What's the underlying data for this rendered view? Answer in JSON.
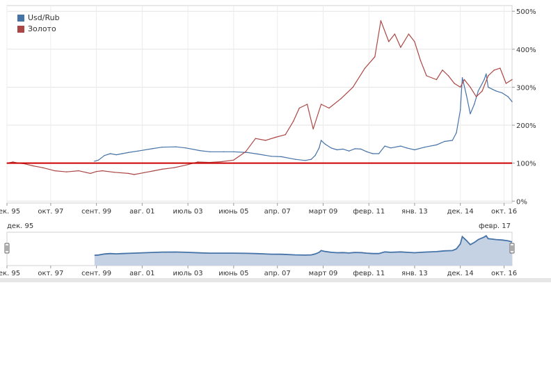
{
  "chart_data": [
    {
      "type": "line",
      "legend": [
        {
          "name": "Usd/Rub",
          "color": "#4572A7"
        },
        {
          "name": "Золото",
          "color": "#AA4643"
        }
      ],
      "legend_placement": "top-left",
      "grid": true,
      "y_axis": {
        "position": "right",
        "ylim": [
          -5,
          515
        ],
        "ticks": [
          0,
          100,
          200,
          300,
          400,
          500
        ],
        "tick_labels": [
          "0%",
          "100%",
          "200%",
          "300%",
          "400%",
          "500%"
        ]
      },
      "xlim": [
        "1995-12",
        "2017-02"
      ],
      "x_tick_labels": [
        {
          "date": "1995-12",
          "label": "дек. 95"
        },
        {
          "date": "1997-10",
          "label": "окт. 97"
        },
        {
          "date": "1999-09",
          "label": "сент. 99"
        },
        {
          "date": "2001-08",
          "label": "авг. 01"
        },
        {
          "date": "2003-07",
          "label": "июль 03"
        },
        {
          "date": "2005-06",
          "label": "июнь 05"
        },
        {
          "date": "2007-04",
          "label": "апр. 07"
        },
        {
          "date": "2009-03",
          "label": "март 09"
        },
        {
          "date": "2011-02",
          "label": "февр. 11"
        },
        {
          "date": "2013-01",
          "label": "янв. 13"
        },
        {
          "date": "2014-12",
          "label": "дек. 14"
        },
        {
          "date": "2016-10",
          "label": "окт. 16"
        }
      ],
      "reference_line": {
        "value": 100,
        "color": "#CC0000"
      },
      "series": [
        {
          "name": "Usd/Rub",
          "color": "#4572A7",
          "points": [
            [
              "1999-08",
              105
            ],
            [
              "1999-10",
              108
            ],
            [
              "2000-01",
              120
            ],
            [
              "2000-04",
              125
            ],
            [
              "2000-07",
              122
            ],
            [
              "2000-10",
              125
            ],
            [
              "2001-01",
              128
            ],
            [
              "2001-06",
              132
            ],
            [
              "2002-01",
              138
            ],
            [
              "2002-06",
              142
            ],
            [
              "2003-01",
              143
            ],
            [
              "2003-06",
              140
            ],
            [
              "2004-01",
              133
            ],
            [
              "2004-06",
              130
            ],
            [
              "2005-01",
              130
            ],
            [
              "2005-06",
              130
            ],
            [
              "2006-01",
              128
            ],
            [
              "2006-06",
              124
            ],
            [
              "2007-01",
              118
            ],
            [
              "2007-06",
              117
            ],
            [
              "2008-01",
              110
            ],
            [
              "2008-06",
              107
            ],
            [
              "2008-09",
              110
            ],
            [
              "2008-11",
              120
            ],
            [
              "2009-01",
              140
            ],
            [
              "2009-02",
              160
            ],
            [
              "2009-04",
              150
            ],
            [
              "2009-07",
              140
            ],
            [
              "2009-10",
              135
            ],
            [
              "2010-01",
              137
            ],
            [
              "2010-04",
              132
            ],
            [
              "2010-07",
              138
            ],
            [
              "2010-10",
              137
            ],
            [
              "2011-01",
              130
            ],
            [
              "2011-04",
              125
            ],
            [
              "2011-07",
              125
            ],
            [
              "2011-10",
              145
            ],
            [
              "2012-01",
              140
            ],
            [
              "2012-06",
              145
            ],
            [
              "2012-09",
              140
            ],
            [
              "2013-01",
              135
            ],
            [
              "2013-06",
              142
            ],
            [
              "2013-12",
              148
            ],
            [
              "2014-04",
              157
            ],
            [
              "2014-08",
              160
            ],
            [
              "2014-10",
              180
            ],
            [
              "2014-12",
              240
            ],
            [
              "2015-01",
              325
            ],
            [
              "2015-03",
              280
            ],
            [
              "2015-05",
              230
            ],
            [
              "2015-07",
              255
            ],
            [
              "2015-09",
              290
            ],
            [
              "2015-12",
              320
            ],
            [
              "2016-01",
              335
            ],
            [
              "2016-02",
              300
            ],
            [
              "2016-04",
              295
            ],
            [
              "2016-06",
              290
            ],
            [
              "2016-09",
              285
            ],
            [
              "2016-12",
              275
            ],
            [
              "2017-02",
              262
            ]
          ]
        },
        {
          "name": "Золото",
          "color": "#AA4643",
          "points": [
            [
              "1995-12",
              100
            ],
            [
              "1996-03",
              103
            ],
            [
              "1996-06",
              100
            ],
            [
              "1996-09",
              98
            ],
            [
              "1997-01",
              93
            ],
            [
              "1997-06",
              88
            ],
            [
              "1997-12",
              80
            ],
            [
              "1998-06",
              77
            ],
            [
              "1998-12",
              80
            ],
            [
              "1999-06",
              73
            ],
            [
              "1999-09",
              78
            ],
            [
              "1999-12",
              80
            ],
            [
              "2000-06",
              76
            ],
            [
              "2001-01",
              73
            ],
            [
              "2001-04",
              70
            ],
            [
              "2001-09",
              75
            ],
            [
              "2002-02",
              80
            ],
            [
              "2002-06",
              84
            ],
            [
              "2002-12",
              88
            ],
            [
              "2003-06",
              95
            ],
            [
              "2003-12",
              103
            ],
            [
              "2004-06",
              102
            ],
            [
              "2004-12",
              104
            ],
            [
              "2005-06",
              108
            ],
            [
              "2005-12",
              130
            ],
            [
              "2006-05",
              165
            ],
            [
              "2006-10",
              160
            ],
            [
              "2007-03",
              168
            ],
            [
              "2007-08",
              175
            ],
            [
              "2007-12",
              210
            ],
            [
              "2008-03",
              245
            ],
            [
              "2008-07",
              255
            ],
            [
              "2008-10",
              190
            ],
            [
              "2009-02",
              255
            ],
            [
              "2009-06",
              245
            ],
            [
              "2009-12",
              270
            ],
            [
              "2010-06",
              300
            ],
            [
              "2010-12",
              350
            ],
            [
              "2011-05",
              380
            ],
            [
              "2011-08",
              475
            ],
            [
              "2011-12",
              420
            ],
            [
              "2012-03",
              440
            ],
            [
              "2012-06",
              405
            ],
            [
              "2012-10",
              440
            ],
            [
              "2013-01",
              420
            ],
            [
              "2013-04",
              370
            ],
            [
              "2013-07",
              330
            ],
            [
              "2013-12",
              320
            ],
            [
              "2014-03",
              345
            ],
            [
              "2014-06",
              330
            ],
            [
              "2014-09",
              310
            ],
            [
              "2014-12",
              300
            ],
            [
              "2015-02",
              320
            ],
            [
              "2015-05",
              300
            ],
            [
              "2015-08",
              275
            ],
            [
              "2015-11",
              290
            ],
            [
              "2016-02",
              330
            ],
            [
              "2016-05",
              345
            ],
            [
              "2016-08",
              350
            ],
            [
              "2016-11",
              310
            ],
            [
              "2017-02",
              320
            ]
          ]
        }
      ]
    },
    {
      "type": "area",
      "role": "navigator",
      "range_start_label": "дек. 95",
      "range_end_label": "февр. 17",
      "x_tick_labels": [
        {
          "date": "1995-12",
          "label": "дек. 95"
        },
        {
          "date": "1997-10",
          "label": "окт. 97"
        },
        {
          "date": "1999-09",
          "label": "сент. 99"
        },
        {
          "date": "2001-08",
          "label": "авг. 01"
        },
        {
          "date": "2003-07",
          "label": "июль 03"
        },
        {
          "date": "2005-06",
          "label": "июнь 05"
        },
        {
          "date": "2007-04",
          "label": "апр. 07"
        },
        {
          "date": "2009-03",
          "label": "март 09"
        },
        {
          "date": "2011-02",
          "label": "февр. 11"
        },
        {
          "date": "2013-01",
          "label": "янв. 13"
        },
        {
          "date": "2014-12",
          "label": "дек. 14"
        },
        {
          "date": "2016-10",
          "label": "окт. 16"
        }
      ],
      "series_ref": "Usd/Rub",
      "fill_color": "#C5D2E3"
    }
  ]
}
